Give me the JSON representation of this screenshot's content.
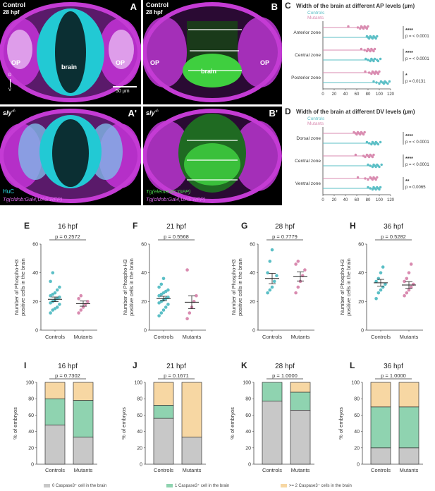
{
  "micrographs": [
    {
      "letter": "A",
      "title": "Control",
      "subtitle": "28 hpf",
      "labels": [
        "OP",
        "brain",
        "OP"
      ],
      "scale": "50 µm",
      "axis": [
        "D",
        "V"
      ],
      "channels": []
    },
    {
      "letter": "B",
      "title": "Control",
      "subtitle": "28 hpf",
      "labels": [
        "OP",
        "brain",
        "OP"
      ],
      "scale": "",
      "axis": [],
      "channels": []
    },
    {
      "letter": "A'",
      "title": "sly",
      "sup": "-/-",
      "subtitle": "",
      "labels": [],
      "scale": "",
      "axis": [],
      "channels": [
        "HuC",
        "Tg(cldnb:Gal4;UAS:RFP)"
      ]
    },
    {
      "letter": "B'",
      "title": "sly",
      "sup": "-/-",
      "subtitle": "",
      "labels": [],
      "scale": "",
      "axis": [],
      "channels": [
        "Tg(elementC:GFP)",
        "Tg(cldnb:Gal4;UAS:RFP)"
      ]
    }
  ],
  "colors": {
    "controls": "#5bbfc6",
    "mutants": "#d98bb0",
    "zero": "#c8c8c8",
    "one": "#8fd3b0",
    "two": "#f7d7a3",
    "cyan": "#2ee6ee",
    "magenta": "#c43bd4",
    "green": "#3fcf3f"
  },
  "chart_data": [
    {
      "letter": "C",
      "type": "scatter",
      "title": "Width of the brain at different AP levels (µm)",
      "legend": [
        "Controls",
        "Mutants"
      ],
      "categories": [
        "Anterior zone",
        "Central zone",
        "Posterior zone"
      ],
      "xlim": [
        0,
        120
      ],
      "xticks": [
        0,
        20,
        40,
        60,
        80,
        100,
        120
      ],
      "series": [
        {
          "name": "Mutants",
          "values": [
            [
              45,
              62,
              66,
              68,
              70,
              72,
              74,
              76,
              78,
              80
            ],
            [
              68,
              74,
              78,
              80,
              82,
              84,
              86,
              88,
              90,
              92
            ],
            [
              75,
              82,
              86,
              88,
              90,
              92,
              94,
              96,
              98,
              100
            ]
          ],
          "means": [
            72,
            84,
            91
          ]
        },
        {
          "name": "Controls",
          "values": [
            [
              78,
              80,
              82,
              84,
              86,
              88,
              90,
              92,
              94,
              96
            ],
            [
              76,
              80,
              84,
              86,
              88,
              90,
              92,
              96,
              98,
              102
            ],
            [
              90,
              95,
              100,
              103,
              106,
              108,
              110,
              112,
              115,
              118
            ]
          ],
          "means": [
            88,
            90,
            106
          ]
        }
      ],
      "stats": [
        {
          "stars": "****",
          "p": "p = < 0.0001"
        },
        {
          "stars": "****",
          "p": "p = < 0.0001"
        },
        {
          "stars": "*",
          "p": "p = 0.0131"
        }
      ]
    },
    {
      "letter": "D",
      "type": "scatter",
      "title": "Width of the brain at different DV levels (µm)",
      "legend": [
        "Controls",
        "Mutants"
      ],
      "categories": [
        "Dorsal zone",
        "Central zone",
        "Ventral zone"
      ],
      "xlim": [
        0,
        120
      ],
      "xticks": [
        0,
        20,
        40,
        60,
        80,
        100,
        120
      ],
      "series": [
        {
          "name": "Mutants",
          "values": [
            [
              55,
              58,
              60,
              62,
              64,
              66,
              68,
              70,
              72,
              74
            ],
            [
              58,
              72,
              75,
              78,
              80,
              82,
              84,
              86,
              88,
              90
            ],
            [
              62,
              75,
              80,
              84,
              86,
              88,
              90,
              92,
              94,
              96
            ]
          ],
          "means": [
            66,
            80,
            87
          ]
        },
        {
          "name": "Controls",
          "values": [
            [
              78,
              82,
              86,
              88,
              90,
              92,
              94,
              96,
              98,
              102
            ],
            [
              80,
              84,
              88,
              90,
              92,
              94,
              96,
              98,
              100,
              104
            ],
            [
              80,
              84,
              88,
              90,
              92,
              94,
              96,
              98,
              100,
              102
            ]
          ],
          "means": [
            91,
            93,
            93
          ]
        }
      ],
      "stats": [
        {
          "stars": "****",
          "p": "p = < 0.0001"
        },
        {
          "stars": "****",
          "p": "p = < 0.0001"
        },
        {
          "stars": "**",
          "p": "p = 0.0065"
        }
      ]
    },
    {
      "letter": "E",
      "type": "scatter",
      "title": "16 hpf",
      "p": "p = 0.2572",
      "ylabel": [
        "Number of Phospho-H3",
        "positive cells in the brain"
      ],
      "categories": [
        "Controls",
        "Mutants"
      ],
      "ylim": [
        0,
        60
      ],
      "yticks": [
        0,
        20,
        40,
        60
      ],
      "series": [
        {
          "name": "Controls",
          "values": [
            12,
            14,
            15,
            16,
            18,
            19,
            20,
            21,
            22,
            23,
            24,
            25,
            26,
            28,
            30,
            34,
            40
          ],
          "mean": 21.5,
          "sem": 1.6
        },
        {
          "name": "Mutants",
          "values": [
            12,
            14,
            16,
            18,
            20,
            22,
            24
          ],
          "mean": 18.5,
          "sem": 1.8
        }
      ]
    },
    {
      "letter": "F",
      "type": "scatter",
      "title": "21 hpf",
      "p": "p = 0.5568",
      "ylabel": [
        "Number of Phospho-H3",
        "positive cells in the brain"
      ],
      "categories": [
        "Controls",
        "Mutants"
      ],
      "ylim": [
        0,
        60
      ],
      "yticks": [
        0,
        20,
        40,
        60
      ],
      "series": [
        {
          "name": "Controls",
          "values": [
            10,
            12,
            14,
            16,
            18,
            19,
            20,
            21,
            22,
            23,
            24,
            25,
            26,
            27,
            28,
            30,
            32,
            36
          ],
          "mean": 22,
          "sem": 1.6
        },
        {
          "name": "Mutants",
          "values": [
            8,
            12,
            16,
            20,
            24,
            42
          ],
          "mean": 19.5,
          "sem": 4.5
        }
      ]
    },
    {
      "letter": "G",
      "type": "scatter",
      "title": "28 hpf",
      "p": "p = 0.7779",
      "ylabel": [
        "Number of Phospho-H3",
        "positive cells in the brain"
      ],
      "categories": [
        "Controls",
        "Mutants"
      ],
      "ylim": [
        0,
        60
      ],
      "yticks": [
        0,
        20,
        40,
        60
      ],
      "series": [
        {
          "name": "Controls",
          "values": [
            26,
            28,
            30,
            34,
            38,
            40,
            48,
            56
          ],
          "mean": 36,
          "sem": 3.6
        },
        {
          "name": "Mutants",
          "values": [
            26,
            30,
            34,
            38,
            42,
            46,
            48
          ],
          "mean": 37.5,
          "sem": 3.2
        }
      ]
    },
    {
      "letter": "H",
      "type": "scatter",
      "title": "36 hpf",
      "p": "p = 0.5282",
      "ylabel": [
        "Number of Phospho-H3",
        "positive cells in the brain"
      ],
      "categories": [
        "Controls",
        "Mutants"
      ],
      "ylim": [
        0,
        60
      ],
      "yticks": [
        0,
        20,
        40,
        60
      ],
      "series": [
        {
          "name": "Controls",
          "values": [
            22,
            26,
            28,
            30,
            32,
            34,
            36,
            40,
            44
          ],
          "mean": 33,
          "sem": 2.4
        },
        {
          "name": "Mutants",
          "values": [
            24,
            26,
            28,
            30,
            32,
            34,
            36,
            40,
            46
          ],
          "mean": 31.5,
          "sem": 2.3
        }
      ]
    },
    {
      "letter": "I",
      "type": "bar",
      "stacked": true,
      "title": "16 hpf",
      "p": "p = 0.7302",
      "ylabel": "% of embryos",
      "categories": [
        "Controls",
        "Mutants"
      ],
      "ylim": [
        0,
        100
      ],
      "yticks": [
        0,
        20,
        40,
        60,
        80,
        100
      ],
      "series": [
        {
          "name": "0 Caspase3+ cell in the brain",
          "values": [
            48,
            33
          ]
        },
        {
          "name": "1 Caspase3+ cell in the brain",
          "values": [
            32,
            45
          ]
        },
        {
          "name": ">= 2 Caspase3+ cells in the brain",
          "values": [
            20,
            22
          ]
        }
      ]
    },
    {
      "letter": "J",
      "type": "bar",
      "stacked": true,
      "title": "21 hpf",
      "p": "p = 0.1671",
      "ylabel": "% of embryos",
      "categories": [
        "Controls",
        "Mutants"
      ],
      "ylim": [
        0,
        100
      ],
      "yticks": [
        0,
        20,
        40,
        60,
        80,
        100
      ],
      "series": [
        {
          "name": "0 Caspase3+ cell in the brain",
          "values": [
            56,
            33
          ]
        },
        {
          "name": "1 Caspase3+ cell in the brain",
          "values": [
            16,
            0
          ]
        },
        {
          "name": ">= 2 Caspase3+ cells in the brain",
          "values": [
            28,
            67
          ]
        }
      ]
    },
    {
      "letter": "K",
      "type": "bar",
      "stacked": true,
      "title": "28 hpf",
      "p": "p = 1.0000",
      "ylabel": "% of embryos",
      "categories": [
        "Controls",
        "Mutants"
      ],
      "ylim": [
        0,
        100
      ],
      "yticks": [
        0,
        20,
        40,
        60,
        80,
        100
      ],
      "series": [
        {
          "name": "0 Caspase3+ cell in the brain",
          "values": [
            77,
            66
          ]
        },
        {
          "name": "1 Caspase3+ cell in the brain",
          "values": [
            23,
            22
          ]
        },
        {
          "name": ">= 2 Caspase3+ cells in the brain",
          "values": [
            0,
            12
          ]
        }
      ]
    },
    {
      "letter": "L",
      "type": "bar",
      "stacked": true,
      "title": "36 hpf",
      "p": "p = 1.0000",
      "ylabel": "% of embryos",
      "categories": [
        "Controls",
        "Mutants"
      ],
      "ylim": [
        0,
        100
      ],
      "yticks": [
        0,
        20,
        40,
        60,
        80,
        100
      ],
      "series": [
        {
          "name": "0 Caspase3+ cell in the brain",
          "values": [
            20,
            20
          ]
        },
        {
          "name": "1 Caspase3+ cell in the brain",
          "values": [
            50,
            50
          ]
        },
        {
          "name": ">= 2 Caspase3+ cells in the brain",
          "values": [
            30,
            30
          ]
        }
      ]
    }
  ],
  "legend": [
    {
      "text": "0 Caspase3⁺ cell in the brain",
      "color": "#c8c8c8"
    },
    {
      "text": "1 Caspase3⁺ cell in the brain",
      "color": "#8fd3b0"
    },
    {
      "text": ">= 2 Caspase3⁺ cells in the brain",
      "color": "#f7d7a3"
    }
  ]
}
